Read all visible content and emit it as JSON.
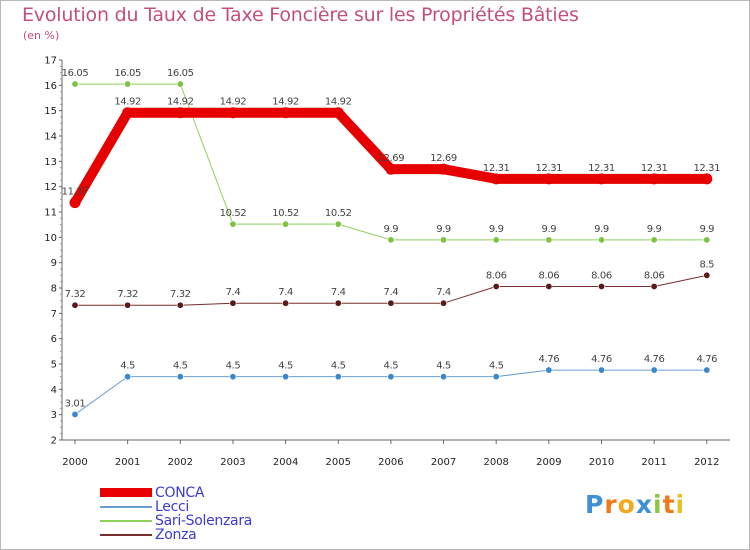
{
  "title": "Evolution du Taux de Taxe Foncière sur les Propriétés Bâties",
  "subtitle": "(en %)",
  "logo": {
    "letters": [
      "P",
      "r",
      "o",
      "x",
      "i",
      "t",
      "i"
    ],
    "colors": [
      "#3d8fd6",
      "#f07a1a",
      "#f2a91d",
      "#3d8fd6",
      "#8bc63e",
      "#f07a1a",
      "#e8c024"
    ]
  },
  "chart_data": {
    "type": "line",
    "title": "Evolution du Taux de Taxe Foncière sur les Propriétés Bâties",
    "ylabel": "(en %)",
    "xlabel": "",
    "x": [
      "2000",
      "2001",
      "2002",
      "2003",
      "2004",
      "2005",
      "2006",
      "2007",
      "2008",
      "2009",
      "2010",
      "2011",
      "2012"
    ],
    "ylim": [
      2,
      17
    ],
    "yticks": [
      "2",
      "3",
      "4",
      "5",
      "6",
      "7",
      "8",
      "9",
      "10",
      "11",
      "12",
      "13",
      "14",
      "15",
      "16",
      "17"
    ],
    "grid": false,
    "legend": "bottom-left",
    "series": [
      {
        "name": "Lecci",
        "color": "#6aa0d0",
        "marker": "#3a88cc",
        "width": 1,
        "values": [
          3.01,
          4.5,
          4.5,
          4.5,
          4.5,
          4.5,
          4.5,
          4.5,
          4.5,
          4.76,
          4.76,
          4.76,
          4.76
        ],
        "labels": [
          "3.01",
          "4.5",
          "4.5",
          "4.5",
          "4.5",
          "4.5",
          "4.5",
          "4.5",
          "4.5",
          "4.76",
          "4.76",
          "4.76",
          "4.76"
        ]
      },
      {
        "name": "Zonza",
        "color": "#7a2f2f",
        "marker": "#5a1a1a",
        "width": 1,
        "values": [
          7.32,
          7.32,
          7.32,
          7.4,
          7.4,
          7.4,
          7.4,
          7.4,
          8.06,
          8.06,
          8.06,
          8.06,
          8.5
        ],
        "labels": [
          "7.32",
          "7.32",
          "7.32",
          "7.4",
          "7.4",
          "7.4",
          "7.4",
          "7.4",
          "8.06",
          "8.06",
          "8.06",
          "8.06",
          "8.5"
        ]
      },
      {
        "name": "Sari-Solenzara",
        "color": "#8fd05a",
        "marker": "#7cc440",
        "width": 1,
        "values": [
          16.05,
          16.05,
          16.05,
          10.52,
          10.52,
          10.52,
          9.9,
          9.9,
          9.9,
          9.9,
          9.9,
          9.9,
          9.9
        ],
        "labels": [
          "16.05",
          "16.05",
          "16.05",
          "10.52",
          "10.52",
          "10.52",
          "9.9",
          "9.9",
          "9.9",
          "9.9",
          "9.9",
          "9.9",
          "9.9"
        ]
      },
      {
        "name": "CONCA",
        "color": "#e60000",
        "marker": "#e60000",
        "width": 10,
        "values": [
          11.37,
          14.92,
          14.92,
          14.92,
          14.92,
          14.92,
          12.69,
          12.69,
          12.31,
          12.31,
          12.31,
          12.31,
          12.31
        ],
        "labels": [
          "11.37",
          "14.92",
          "14.92",
          "14.92",
          "14.92",
          "14.92",
          "12.69",
          "12.69",
          "12.31",
          "12.31",
          "12.31",
          "12.31",
          "12.31"
        ]
      }
    ],
    "legend_order": [
      "CONCA",
      "Lecci",
      "Sari-Solenzara",
      "Zonza"
    ]
  }
}
